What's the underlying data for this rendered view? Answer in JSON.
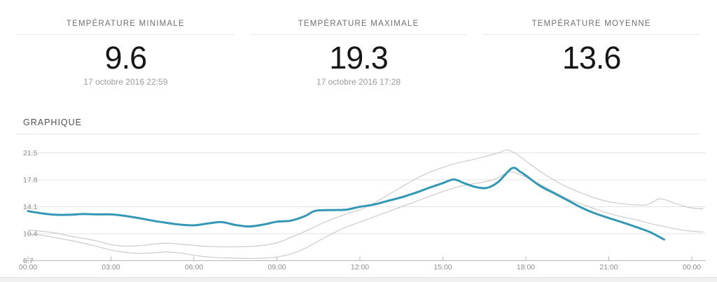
{
  "cards": [
    {
      "label": "TEMPÉRATURE MINIMALE",
      "value": "9.6",
      "date": "17 octobre 2016 22:59"
    },
    {
      "label": "TEMPÉRATURE MAXIMALE",
      "value": "19.3",
      "date": "17 octobre 2016 17:28"
    },
    {
      "label": "TEMPÉRATURE MOYENNE",
      "value": "13.6",
      "date": ""
    }
  ],
  "section": {
    "title": "GRAPHIQUE"
  },
  "colors": {
    "accent": "#3398b5",
    "gray_line": "#cbcbcb",
    "grid": "#e3e3e3",
    "axis": "#b5b5b5",
    "tick_label": "#8d8d8d"
  },
  "chart_data": {
    "type": "line",
    "title": "GRAPHIQUE",
    "xlabel": "",
    "ylabel": "",
    "x_unit": "hours",
    "xlim": [
      0,
      24.5
    ],
    "ylim": [
      6.7,
      21.5
    ],
    "grid": true,
    "legend": "none",
    "y_ticks": [
      6.7,
      10.4,
      14.1,
      17.8,
      21.5
    ],
    "x_ticks": [
      {
        "hour": 0,
        "label": "00:00"
      },
      {
        "hour": 3,
        "label": "03:00"
      },
      {
        "hour": 6,
        "label": "06:00"
      },
      {
        "hour": 9,
        "label": "09:00"
      },
      {
        "hour": 12,
        "label": "12:00"
      },
      {
        "hour": 15,
        "label": "15:00"
      },
      {
        "hour": 18,
        "label": "18:00"
      },
      {
        "hour": 21,
        "label": "21:00"
      },
      {
        "hour": 24,
        "label": "00:00"
      }
    ],
    "series": [
      {
        "name": "comparison-line-1",
        "color": "#cbcbcb",
        "width": 1.2,
        "points": [
          [
            0,
            10.9
          ],
          [
            0.5,
            10.75
          ],
          [
            1,
            10.5
          ],
          [
            1.5,
            10.1
          ],
          [
            2,
            9.75
          ],
          [
            2.5,
            9.4
          ],
          [
            3,
            8.9
          ],
          [
            3.5,
            8.7
          ],
          [
            4,
            8.75
          ],
          [
            4.5,
            8.95
          ],
          [
            5,
            9.1
          ],
          [
            5.5,
            8.95
          ],
          [
            6,
            8.8
          ],
          [
            6.5,
            8.65
          ],
          [
            7,
            8.6
          ],
          [
            7.5,
            8.6
          ],
          [
            8,
            8.65
          ],
          [
            8.5,
            8.8
          ],
          [
            9,
            9.15
          ],
          [
            9.5,
            9.9
          ],
          [
            10,
            10.7
          ],
          [
            10.5,
            11.6
          ],
          [
            11,
            12.4
          ],
          [
            11.5,
            13.1
          ],
          [
            12,
            13.7
          ],
          [
            12.5,
            14.6
          ],
          [
            13,
            15.7
          ],
          [
            13.5,
            16.8
          ],
          [
            14,
            17.9
          ],
          [
            14.5,
            18.8
          ],
          [
            15,
            19.5
          ],
          [
            15.5,
            20.1
          ],
          [
            16,
            20.5
          ],
          [
            16.5,
            21.0
          ],
          [
            17,
            21.5
          ],
          [
            17.3,
            21.9
          ],
          [
            17.6,
            21.5
          ],
          [
            18,
            20.4
          ],
          [
            18.5,
            19.0
          ],
          [
            19,
            17.8
          ],
          [
            19.5,
            16.8
          ],
          [
            20,
            16.0
          ],
          [
            20.5,
            15.3
          ],
          [
            21,
            14.8
          ],
          [
            21.5,
            14.5
          ],
          [
            22,
            14.35
          ],
          [
            22.4,
            14.4
          ],
          [
            22.85,
            15.2
          ],
          [
            23.3,
            14.7
          ],
          [
            23.7,
            14.2
          ],
          [
            24,
            13.95
          ],
          [
            24.4,
            13.8
          ]
        ]
      },
      {
        "name": "comparison-line-2",
        "color": "#cbcbcb",
        "width": 1.2,
        "points": [
          [
            0,
            10.35
          ],
          [
            0.5,
            10.2
          ],
          [
            1,
            9.85
          ],
          [
            1.5,
            9.5
          ],
          [
            2,
            9.1
          ],
          [
            2.5,
            8.65
          ],
          [
            3,
            8.15
          ],
          [
            3.5,
            7.85
          ],
          [
            4,
            7.7
          ],
          [
            4.5,
            7.75
          ],
          [
            5,
            7.9
          ],
          [
            5.5,
            7.75
          ],
          [
            6,
            7.45
          ],
          [
            6.5,
            7.2
          ],
          [
            7,
            7.1
          ],
          [
            7.5,
            7.05
          ],
          [
            8,
            7.0
          ],
          [
            8.5,
            7.05
          ],
          [
            9,
            7.2
          ],
          [
            9.5,
            7.6
          ],
          [
            10,
            8.35
          ],
          [
            10.5,
            9.4
          ],
          [
            11,
            10.4
          ],
          [
            11.5,
            11.3
          ],
          [
            12,
            12.0
          ],
          [
            12.5,
            12.7
          ],
          [
            13,
            13.4
          ],
          [
            13.5,
            14.1
          ],
          [
            14,
            14.8
          ],
          [
            14.5,
            15.5
          ],
          [
            15,
            16.2
          ],
          [
            15.5,
            16.8
          ],
          [
            16,
            17.2
          ],
          [
            16.5,
            17.5
          ],
          [
            17,
            18.1
          ],
          [
            17.4,
            18.9
          ],
          [
            17.8,
            18.5
          ],
          [
            18,
            18.2
          ],
          [
            18.5,
            17.2
          ],
          [
            19,
            16.2
          ],
          [
            19.5,
            15.2
          ],
          [
            20,
            14.5
          ],
          [
            20.5,
            13.8
          ],
          [
            21,
            13.2
          ],
          [
            21.5,
            12.7
          ],
          [
            22,
            12.3
          ],
          [
            22.5,
            11.8
          ],
          [
            23,
            11.4
          ],
          [
            23.5,
            11.0
          ],
          [
            24,
            10.75
          ],
          [
            24.4,
            10.65
          ]
        ]
      },
      {
        "name": "temperature-line",
        "color": "#3398b5",
        "width": 3,
        "points": [
          [
            0,
            13.5
          ],
          [
            0.5,
            13.2
          ],
          [
            1,
            13.0
          ],
          [
            1.5,
            13.0
          ],
          [
            2,
            13.1
          ],
          [
            2.5,
            13.05
          ],
          [
            3,
            13.05
          ],
          [
            3.5,
            12.85
          ],
          [
            4,
            12.55
          ],
          [
            4.5,
            12.2
          ],
          [
            5,
            11.9
          ],
          [
            5.5,
            11.65
          ],
          [
            6,
            11.55
          ],
          [
            6.5,
            11.8
          ],
          [
            7,
            12.0
          ],
          [
            7.5,
            11.6
          ],
          [
            8,
            11.4
          ],
          [
            8.5,
            11.65
          ],
          [
            9,
            12.05
          ],
          [
            9.5,
            12.2
          ],
          [
            10,
            12.8
          ],
          [
            10.4,
            13.55
          ],
          [
            11,
            13.65
          ],
          [
            11.5,
            13.7
          ],
          [
            12,
            14.1
          ],
          [
            12.5,
            14.4
          ],
          [
            13,
            14.9
          ],
          [
            13.5,
            15.4
          ],
          [
            14,
            16.0
          ],
          [
            14.5,
            16.7
          ],
          [
            15,
            17.35
          ],
          [
            15.4,
            17.85
          ],
          [
            15.8,
            17.3
          ],
          [
            16.2,
            16.8
          ],
          [
            16.6,
            16.7
          ],
          [
            17,
            17.5
          ],
          [
            17.5,
            19.4
          ],
          [
            17.8,
            18.9
          ],
          [
            18,
            18.4
          ],
          [
            18.5,
            17.0
          ],
          [
            19,
            16.0
          ],
          [
            19.5,
            15.0
          ],
          [
            20,
            14.0
          ],
          [
            20.5,
            13.2
          ],
          [
            21,
            12.55
          ],
          [
            21.5,
            11.95
          ],
          [
            22,
            11.3
          ],
          [
            22.5,
            10.6
          ],
          [
            23,
            9.6
          ]
        ]
      }
    ]
  }
}
